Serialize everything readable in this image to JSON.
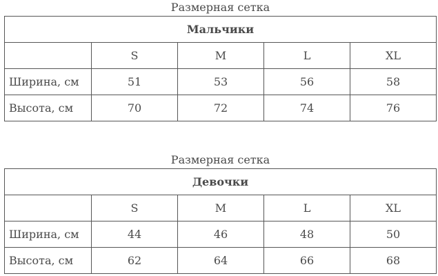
{
  "tables": [
    {
      "caption": "Размерная сетка",
      "title": "Мальчики",
      "sizes": [
        "S",
        "M",
        "L",
        "XL"
      ],
      "rows": [
        {
          "label": "Ширина, см",
          "values": [
            "51",
            "53",
            "56",
            "58"
          ]
        },
        {
          "label": "Высота, см",
          "values": [
            "70",
            "72",
            "74",
            "76"
          ]
        }
      ]
    },
    {
      "caption": "Размерная сетка",
      "title": "Девочки",
      "sizes": [
        "S",
        "M",
        "L",
        "XL"
      ],
      "rows": [
        {
          "label": "Ширина, см",
          "values": [
            "44",
            "46",
            "48",
            "50"
          ]
        },
        {
          "label": "Высота, см",
          "values": [
            "62",
            "64",
            "66",
            "68"
          ]
        }
      ]
    }
  ]
}
